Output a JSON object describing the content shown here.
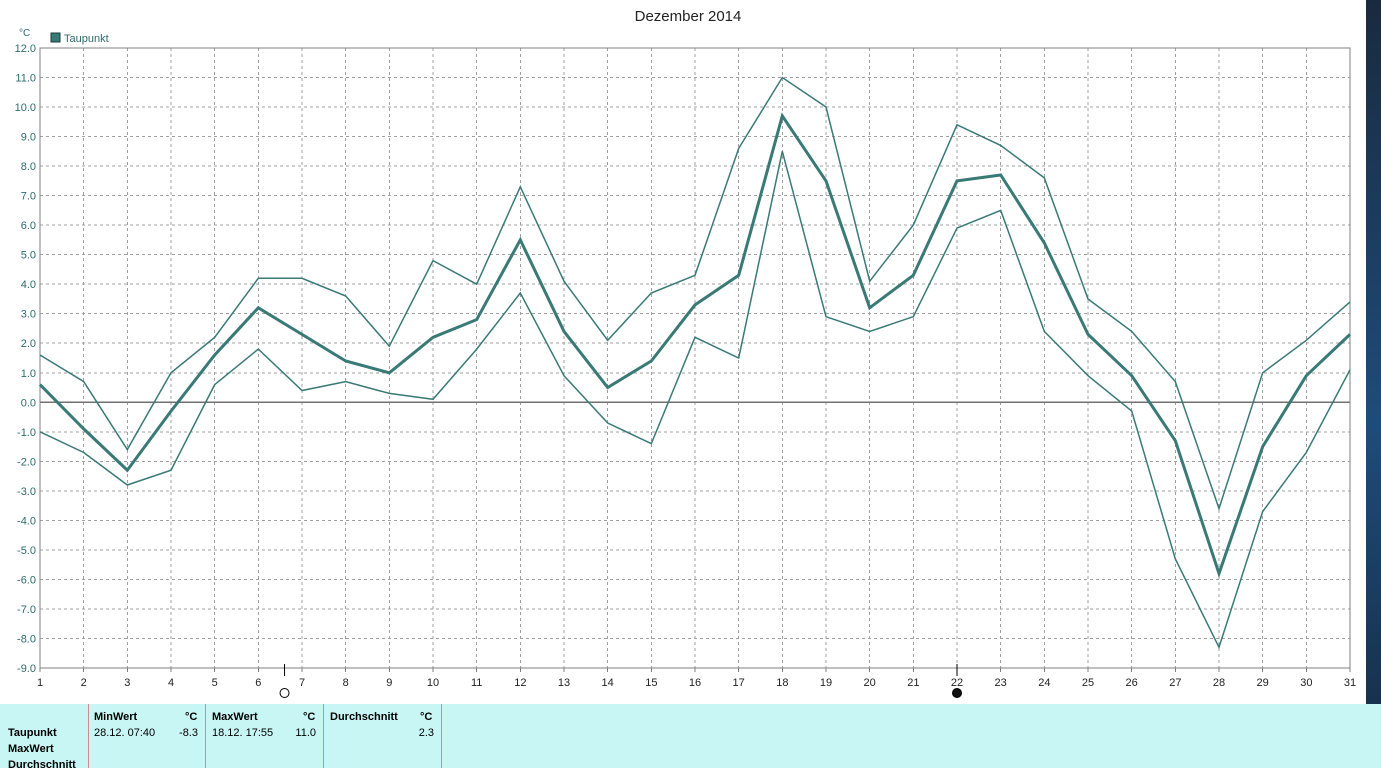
{
  "chart_data": {
    "type": "line",
    "title": "Dezember 2014",
    "ylabel": "°C",
    "ylim": [
      -9,
      12
    ],
    "yticks": [
      "12.0",
      "11.0",
      "10.0",
      "9.0",
      "8.0",
      "7.0",
      "6.0",
      "5.0",
      "4.0",
      "3.0",
      "2.0",
      "1.0",
      "0.0",
      "-1.0",
      "-2.0",
      "-3.0",
      "-4.0",
      "-5.0",
      "-6.0",
      "-7.0",
      "-8.0",
      "-9.0"
    ],
    "x": [
      1,
      2,
      3,
      4,
      5,
      6,
      7,
      8,
      9,
      10,
      11,
      12,
      13,
      14,
      15,
      16,
      17,
      18,
      19,
      20,
      21,
      22,
      23,
      24,
      25,
      26,
      27,
      28,
      29,
      30,
      31
    ],
    "xticks": [
      "1",
      "2",
      "3",
      "4",
      "5",
      "6",
      "7",
      "8",
      "9",
      "10",
      "11",
      "12",
      "13",
      "14",
      "15",
      "16",
      "17",
      "18",
      "19",
      "20",
      "21",
      "22",
      "23",
      "24",
      "25",
      "26",
      "27",
      "28",
      "29",
      "30",
      "31"
    ],
    "legend": [
      "Taupunkt"
    ],
    "legend_placement": "top-left",
    "grid": true,
    "series": [
      {
        "name": "Taupunkt",
        "role": "avg",
        "values": [
          0.6,
          -0.9,
          -2.3,
          -0.3,
          1.6,
          3.2,
          2.3,
          1.4,
          1.0,
          2.2,
          2.8,
          5.5,
          2.4,
          0.5,
          1.4,
          3.3,
          4.3,
          9.7,
          7.5,
          3.2,
          4.3,
          7.5,
          7.7,
          5.4,
          2.3,
          0.9,
          -1.3,
          -5.8,
          -1.5,
          0.9,
          2.3
        ]
      },
      {
        "role": "max",
        "values": [
          1.6,
          0.7,
          -1.6,
          1.0,
          2.2,
          4.2,
          4.2,
          3.6,
          1.9,
          4.8,
          4.0,
          7.3,
          4.1,
          2.1,
          3.7,
          4.3,
          8.6,
          11.0,
          10.0,
          4.1,
          6.0,
          9.4,
          8.7,
          7.6,
          3.5,
          2.4,
          0.7,
          -3.6,
          1.0,
          2.1,
          3.4
        ]
      },
      {
        "role": "min",
        "values": [
          -1.0,
          -1.7,
          -2.8,
          -2.3,
          0.6,
          1.8,
          0.4,
          0.7,
          0.3,
          0.1,
          1.8,
          3.7,
          0.9,
          -0.7,
          -1.4,
          2.2,
          1.5,
          8.5,
          2.9,
          2.4,
          2.9,
          5.9,
          6.5,
          2.4,
          0.9,
          -0.3,
          -5.3,
          -8.3,
          -3.7,
          -1.7,
          1.1
        ]
      }
    ],
    "colors": {
      "line": "#3a7a76",
      "grid": "#a0a0a0",
      "axis": "#808080",
      "zero": "#707070",
      "legend_box": "#3a7a76"
    },
    "markers": [
      {
        "day_position": 6.6,
        "symbol": "full-moon-icon"
      },
      {
        "day_position": 22,
        "symbol": "new-moon-icon"
      }
    ]
  },
  "stats": {
    "rows": [
      "Taupunkt",
      "MaxWert",
      "Durchschnitt"
    ],
    "min": {
      "header": "MinWert",
      "unit": "°C",
      "date": "28.12.  07:40",
      "value": "-8.3"
    },
    "max": {
      "header": "MaxWert",
      "unit": "°C",
      "date": "18.12.  17:55",
      "value": "11.0"
    },
    "avg": {
      "header": "Durchschnitt",
      "unit": "°C",
      "value": "2.3"
    }
  }
}
